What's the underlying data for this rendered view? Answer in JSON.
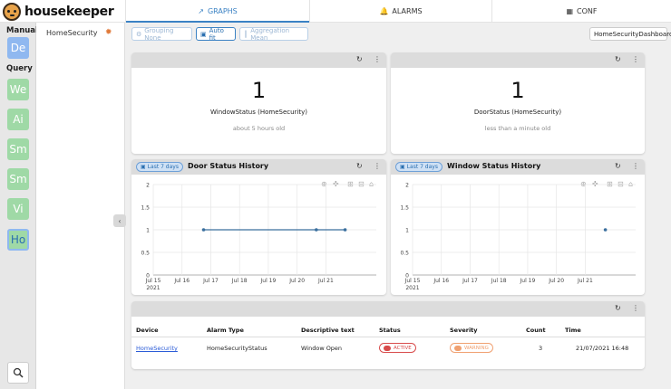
{
  "app": {
    "name": "housekeeper"
  },
  "tabs": [
    {
      "label": "GRAPHS",
      "icon": "chart-line-icon",
      "active": true
    },
    {
      "label": "ALARMS",
      "icon": "bell-icon",
      "active": false
    },
    {
      "label": "CONF",
      "icon": "grid-icon",
      "active": false
    }
  ],
  "rail": {
    "manual_label": "Manual",
    "query_label": "Query",
    "buttons": [
      "De",
      "We",
      "Ai",
      "Sm",
      "Sm",
      "Vi",
      "Ho"
    ]
  },
  "devices": {
    "items": [
      {
        "label": "HomeSecurity",
        "alarm_icon": "alarm-bell-icon"
      }
    ]
  },
  "toolbar": {
    "grouping": "Grouping None",
    "autofit": "Auto fit",
    "aggregation": "Aggregation Mean",
    "dashboard": "HomeSecurityDashboard"
  },
  "stats": [
    {
      "value": "1",
      "label": "WindowStatus (HomeSecurity)",
      "sub": "about 5 hours old"
    },
    {
      "value": "1",
      "label": "DoorStatus (HomeSecurity)",
      "sub": "less than a minute old"
    }
  ],
  "chart_data": [
    {
      "type": "line",
      "title": "Door Status History",
      "range_badge": "Last 7 days",
      "x_ticks": [
        "Jul 15\n2021",
        "Jul 16",
        "Jul 17",
        "Jul 18",
        "Jul 19",
        "Jul 20",
        "Jul 21"
      ],
      "y_ticks": [
        "0",
        "0.5",
        "1",
        "1.5",
        "2"
      ],
      "ylim": [
        0,
        2
      ],
      "series": [
        {
          "x": [
            "2021-07-16 18:00",
            "2021-07-20 16:00",
            "2021-07-21 16:00"
          ],
          "y": [
            1,
            1,
            1
          ]
        }
      ],
      "grid": true
    },
    {
      "type": "scatter",
      "title": "Window Status History",
      "range_badge": "Last 7 days",
      "x_ticks": [
        "Jul 15\n2021",
        "Jul 16",
        "Jul 17",
        "Jul 18",
        "Jul 19",
        "Jul 20",
        "Jul 21"
      ],
      "y_ticks": [
        "0",
        "0.5",
        "1",
        "1.5",
        "2"
      ],
      "ylim": [
        0,
        2
      ],
      "series": [
        {
          "x": [
            "2021-07-21 16:48"
          ],
          "y": [
            1
          ]
        }
      ],
      "grid": true
    }
  ],
  "alarms_table": {
    "headers": [
      "Device",
      "Alarm Type",
      "Descriptive text",
      "Status",
      "Severity",
      "Count",
      "Time"
    ],
    "rows": [
      {
        "device": "HomeSecurity",
        "alarm_type": "HomeSecurityStatus",
        "text": "Window Open",
        "status": "ACTIVE",
        "severity": "WARNING",
        "count": "3",
        "time": "21/07/2021 16:48"
      }
    ]
  },
  "colors": {
    "accent": "#3b82c4",
    "series": "#3a6f9e",
    "active": "#d84a4a",
    "warning": "#f0a070"
  }
}
